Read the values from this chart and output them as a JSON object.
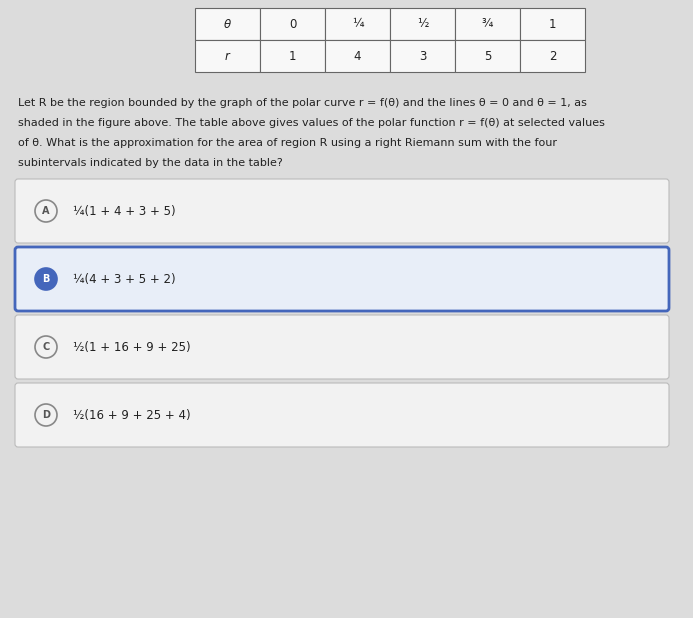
{
  "background_color": "#dcdcdc",
  "table": {
    "row1": [
      "θ",
      "0",
      "¼",
      "½",
      "¾",
      "1"
    ],
    "row2": [
      "r",
      "1",
      "4",
      "3",
      "5",
      "2"
    ]
  },
  "para_lines": [
    "Let R be the region bounded by the graph of the polar curve r = f(θ) and the lines θ = 0 and θ = 1, as",
    "shaded in the figure above. The table above gives values of the polar function r = f(θ) at selected values",
    "of θ. What is the approximation for the area of region R using a right Riemann sum with the four",
    "subintervals indicated by the data in the table?"
  ],
  "options": [
    {
      "label": "A",
      "text": "¼(1 + 4 + 3 + 5)",
      "selected": false
    },
    {
      "label": "B",
      "text": "¼(4 + 3 + 5 + 2)",
      "selected": true
    },
    {
      "label": "C",
      "text": "½(1 + 16 + 9 + 25)",
      "selected": false
    },
    {
      "label": "D",
      "text": "½(16 + 9 + 25 + 4)",
      "selected": false
    }
  ],
  "option_bg_unselected": "#f2f2f2",
  "option_bg_selected": "#e8eef8",
  "option_border_selected": "#4466bb",
  "option_border_unselected": "#bbbbbb",
  "text_color": "#222222",
  "table_bg": "#f8f8f8",
  "para_fontsize": 8.0,
  "option_fontsize": 8.5,
  "table_fontsize": 8.5
}
